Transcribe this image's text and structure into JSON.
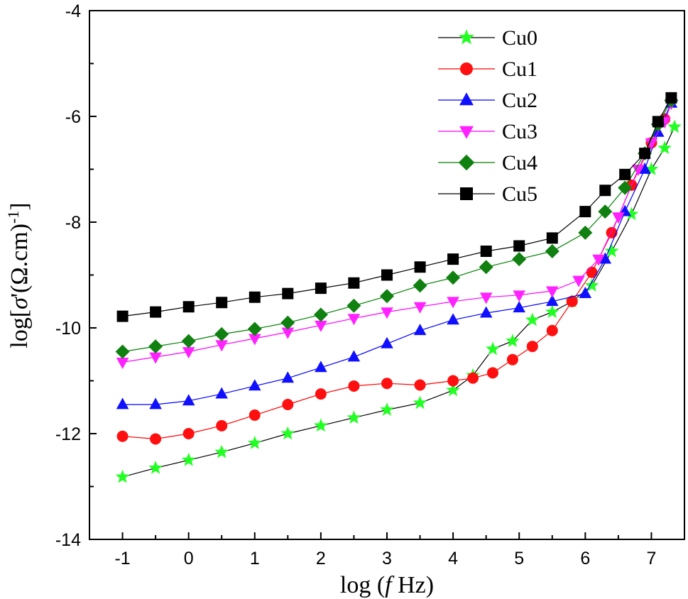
{
  "chart_data": {
    "type": "line",
    "title": "",
    "xlabel": "log (f Hz)",
    "xlabel_parts": {
      "prefix": "log (",
      "var": "f",
      "suffix": " Hz)"
    },
    "ylabel": "log[σ'(Ω.cm)-1]",
    "ylabel_parts": {
      "prefix": "log[",
      "var": "σ",
      "mid": "'(Ω.cm)",
      "sup": "-1",
      "suffix": "]"
    },
    "xlim": [
      -1.5,
      7.5
    ],
    "ylim": [
      -14,
      -4
    ],
    "xticks": [
      "-1",
      "0",
      "1",
      "2",
      "3",
      "4",
      "5",
      "6",
      "7"
    ],
    "yticks": [
      "-4",
      "-6",
      "-8",
      "-10",
      "-12",
      "-14"
    ],
    "legend_position": "top-right",
    "series": [
      {
        "name": "Cu0",
        "color": "#22ff22",
        "line": "#000000",
        "marker": "star",
        "x": [
          -1,
          -0.5,
          0,
          0.5,
          1,
          1.5,
          2,
          2.5,
          3,
          3.5,
          4,
          4.3,
          4.6,
          4.9,
          5.2,
          5.5,
          5.8,
          6.1,
          6.4,
          6.7,
          7,
          7.2,
          7.35
        ],
        "y": [
          -12.82,
          -12.65,
          -12.5,
          -12.35,
          -12.18,
          -12.0,
          -11.85,
          -11.7,
          -11.55,
          -11.42,
          -11.18,
          -10.9,
          -10.4,
          -10.25,
          -9.85,
          -9.7,
          -9.5,
          -9.2,
          -8.55,
          -7.85,
          -7.0,
          -6.6,
          -6.2
        ]
      },
      {
        "name": "Cu1",
        "color": "#ff1010",
        "line": "#ff0000",
        "marker": "circle",
        "x": [
          -1,
          -0.5,
          0,
          0.5,
          1,
          1.5,
          2,
          2.5,
          3,
          3.5,
          4,
          4.3,
          4.6,
          4.9,
          5.2,
          5.5,
          5.8,
          6.1,
          6.4,
          6.7,
          7,
          7.2
        ],
        "y": [
          -12.05,
          -12.1,
          -12.0,
          -11.85,
          -11.65,
          -11.45,
          -11.25,
          -11.1,
          -11.05,
          -11.08,
          -11.0,
          -10.95,
          -10.85,
          -10.6,
          -10.35,
          -10.05,
          -9.5,
          -8.95,
          -8.2,
          -7.3,
          -6.5,
          -6.05
        ]
      },
      {
        "name": "Cu2",
        "color": "#1010ff",
        "line": "#0000ff",
        "marker": "triangle-up",
        "x": [
          -1,
          -0.5,
          0,
          0.5,
          1,
          1.5,
          2,
          2.5,
          3,
          3.5,
          4,
          4.5,
          5,
          5.5,
          6,
          6.3,
          6.6,
          6.9,
          7.1,
          7.3
        ],
        "y": [
          -11.45,
          -11.45,
          -11.38,
          -11.25,
          -11.1,
          -10.95,
          -10.75,
          -10.55,
          -10.3,
          -10.05,
          -9.85,
          -9.72,
          -9.62,
          -9.5,
          -9.35,
          -8.7,
          -7.8,
          -7.0,
          -6.3,
          -5.75
        ]
      },
      {
        "name": "Cu3",
        "color": "#ff22ff",
        "line": "#ff00ff",
        "marker": "triangle-down",
        "x": [
          -1,
          -0.5,
          0,
          0.5,
          1,
          1.5,
          2,
          2.5,
          3,
          3.5,
          4,
          4.5,
          5,
          5.5,
          5.9,
          6.2,
          6.5,
          6.8,
          7.0,
          7.2,
          7.3
        ],
        "y": [
          -10.65,
          -10.55,
          -10.45,
          -10.32,
          -10.2,
          -10.08,
          -9.95,
          -9.82,
          -9.7,
          -9.6,
          -9.5,
          -9.42,
          -9.38,
          -9.3,
          -9.1,
          -8.7,
          -7.9,
          -7.0,
          -6.5,
          -6.1,
          -5.75
        ]
      },
      {
        "name": "Cu4",
        "color": "#108010",
        "line": "#008000",
        "marker": "diamond",
        "x": [
          -1,
          -0.5,
          0,
          0.5,
          1,
          1.5,
          2,
          2.5,
          3,
          3.5,
          4,
          4.5,
          5,
          5.5,
          6,
          6.3,
          6.6,
          6.9,
          7.1,
          7.3
        ],
        "y": [
          -10.45,
          -10.35,
          -10.25,
          -10.12,
          -10.02,
          -9.9,
          -9.75,
          -9.58,
          -9.4,
          -9.2,
          -9.05,
          -8.85,
          -8.7,
          -8.55,
          -8.2,
          -7.8,
          -7.35,
          -6.7,
          -6.15,
          -5.7
        ]
      },
      {
        "name": "Cu5",
        "color": "#000000",
        "line": "#000000",
        "marker": "square",
        "x": [
          -1,
          -0.5,
          0,
          0.5,
          1,
          1.5,
          2,
          2.5,
          3,
          3.5,
          4,
          4.5,
          5,
          5.5,
          6,
          6.3,
          6.6,
          6.9,
          7.1,
          7.3
        ],
        "y": [
          -9.78,
          -9.7,
          -9.6,
          -9.52,
          -9.42,
          -9.35,
          -9.25,
          -9.15,
          -9.0,
          -8.85,
          -8.7,
          -8.55,
          -8.45,
          -8.3,
          -7.8,
          -7.4,
          -7.1,
          -6.7,
          -6.1,
          -5.65
        ]
      }
    ]
  }
}
